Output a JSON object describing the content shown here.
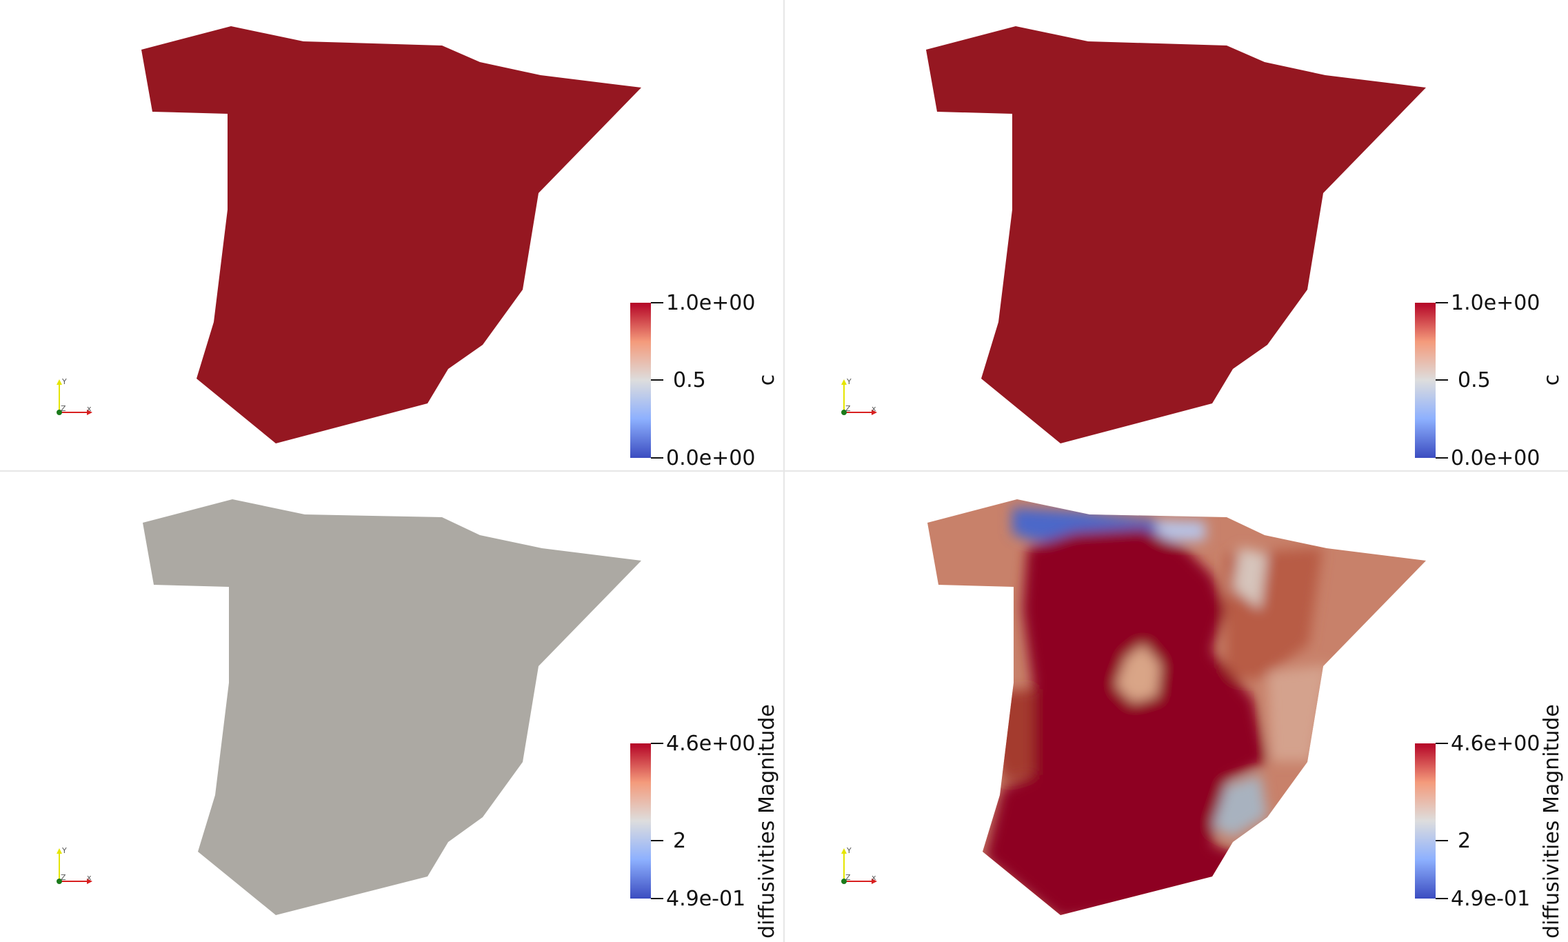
{
  "panels": [
    {
      "id": "top-left",
      "field": "c",
      "scalarbar": {
        "title": "c",
        "max_label": "1.0e+00",
        "mid_label": "0.5",
        "min_label": "0.0e+00"
      }
    },
    {
      "id": "top-right",
      "field": "c",
      "scalarbar": {
        "title": "c",
        "max_label": "1.0e+00",
        "mid_label": "0.5",
        "min_label": "0.0e+00"
      }
    },
    {
      "id": "bottom-left",
      "field": "diffusivities Magnitude",
      "scalarbar": {
        "title": "diffusivities Magnitude",
        "max_label": "4.6e+00",
        "mid_label": "2",
        "min_label": "4.9e-01"
      }
    },
    {
      "id": "bottom-right",
      "field": "diffusivities Magnitude",
      "scalarbar": {
        "title": "diffusivities Magnitude",
        "max_label": "4.6e+00",
        "mid_label": "2",
        "min_label": "4.9e-01"
      }
    }
  ],
  "orientation_axes": {
    "x_label": "x",
    "y_label": "Y",
    "z_label": "Z"
  },
  "colors": {
    "colormap_high": "#b40426",
    "colormap_mid": "#dddddd",
    "colormap_low": "#3b4cc0",
    "field_c_value": "#951721",
    "diffusivity_uniform": "#aca9a3",
    "diffusivity_high": "#8e0420"
  }
}
